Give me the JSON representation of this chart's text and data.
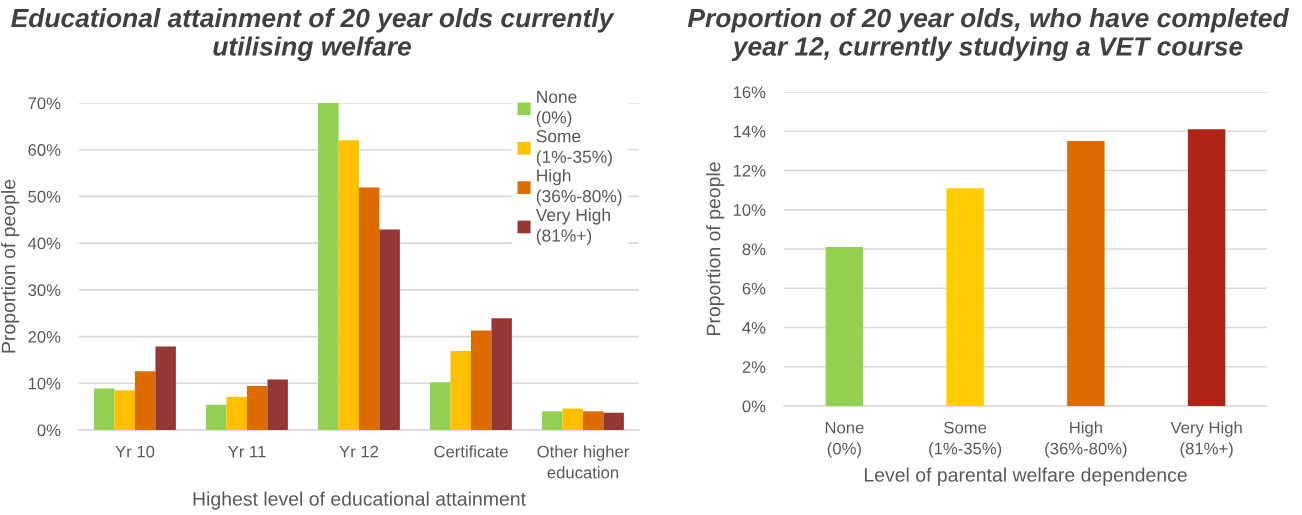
{
  "chart_data": [
    {
      "type": "bar",
      "title": "Educational attainment of 20 year olds currently\nutilising welfare",
      "xlabel": "Highest level of educational attainment",
      "ylabel": "Proportion of people",
      "categories": [
        "Yr 10",
        "Yr 11",
        "Yr 12",
        "Certificate",
        "Other higher\neducation"
      ],
      "series": [
        {
          "name": "None\n(0%)",
          "color": "#92d050",
          "values": [
            8.9,
            5.4,
            70,
            10.2,
            4.0
          ]
        },
        {
          "name": "Some\n(1%-35%)",
          "color": "#ffc000",
          "values": [
            8.5,
            7.1,
            62,
            16.9,
            4.6
          ]
        },
        {
          "name": "High\n(36%-80%)",
          "color": "#dd6b00",
          "values": [
            12.6,
            9.4,
            51.9,
            21.3,
            4.0
          ]
        },
        {
          "name": "Very High\n(81%+)",
          "color": "#953735",
          "values": [
            17.9,
            10.8,
            42.9,
            23.9,
            3.7
          ]
        }
      ],
      "ylim": [
        0,
        70
      ],
      "yticks": [
        {
          "value": 0,
          "label": "0%"
        },
        {
          "value": 10,
          "label": "10%"
        },
        {
          "value": 20,
          "label": "20%"
        },
        {
          "value": 30,
          "label": "30%"
        },
        {
          "value": 40,
          "label": "40%"
        },
        {
          "value": 50,
          "label": "50%"
        },
        {
          "value": 60,
          "label": "60%"
        },
        {
          "value": 70,
          "label": "70%"
        }
      ],
      "grid": "y",
      "legend": "top right"
    },
    {
      "type": "bar",
      "title": "Proportion of 20 year olds, who have completed\nyear 12, currently studying a VET course",
      "xlabel": "Level of parental welfare dependence",
      "ylabel": "Proportion of people",
      "categories": [
        "None\n(0%)",
        "Some\n(1%-35%)",
        "High\n(36%-80%)",
        "Very High\n(81%+)"
      ],
      "values": [
        8.1,
        11.1,
        13.5,
        14.1
      ],
      "colors": [
        "#92d050",
        "#ffcc00",
        "#dd6b00",
        "#b02418"
      ],
      "ylim": [
        0,
        16
      ],
      "yticks": [
        {
          "value": 0,
          "label": "0%"
        },
        {
          "value": 2,
          "label": "2%"
        },
        {
          "value": 4,
          "label": "4%"
        },
        {
          "value": 6,
          "label": "6%"
        },
        {
          "value": 8,
          "label": "8%"
        },
        {
          "value": 10,
          "label": "10%"
        },
        {
          "value": 12,
          "label": "12%"
        },
        {
          "value": 14,
          "label": "14%"
        },
        {
          "value": 16,
          "label": "16%"
        }
      ],
      "grid": "y"
    }
  ]
}
